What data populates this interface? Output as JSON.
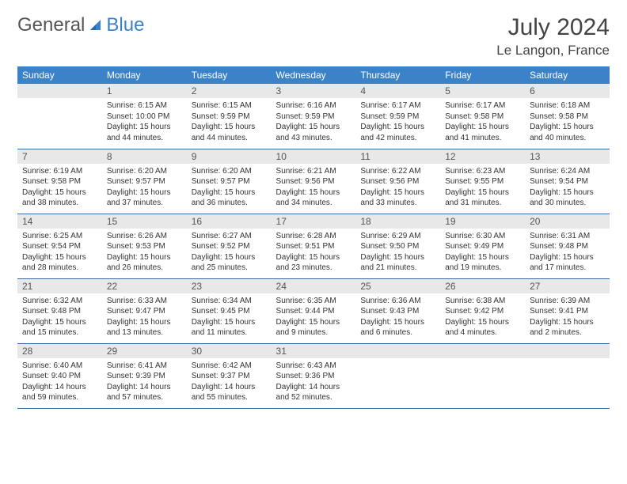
{
  "logo": {
    "text1": "General",
    "text2": "Blue"
  },
  "title": "July 2024",
  "location": "Le Langon, France",
  "weekdays": [
    "Sunday",
    "Monday",
    "Tuesday",
    "Wednesday",
    "Thursday",
    "Friday",
    "Saturday"
  ],
  "colors": {
    "header_bg": "#3b82c8",
    "header_text": "#ffffff",
    "daynum_bg": "#e8e8e8",
    "row_border": "#3b6ea0",
    "body_text": "#333333"
  },
  "fonts": {
    "title_size": 30,
    "location_size": 17,
    "weekday_size": 12,
    "daynum_size": 12,
    "body_size": 10
  },
  "grid": [
    [
      {
        "num": "",
        "lines": []
      },
      {
        "num": "1",
        "lines": [
          "Sunrise: 6:15 AM",
          "Sunset: 10:00 PM",
          "Daylight: 15 hours",
          "and 44 minutes."
        ]
      },
      {
        "num": "2",
        "lines": [
          "Sunrise: 6:15 AM",
          "Sunset: 9:59 PM",
          "Daylight: 15 hours",
          "and 44 minutes."
        ]
      },
      {
        "num": "3",
        "lines": [
          "Sunrise: 6:16 AM",
          "Sunset: 9:59 PM",
          "Daylight: 15 hours",
          "and 43 minutes."
        ]
      },
      {
        "num": "4",
        "lines": [
          "Sunrise: 6:17 AM",
          "Sunset: 9:59 PM",
          "Daylight: 15 hours",
          "and 42 minutes."
        ]
      },
      {
        "num": "5",
        "lines": [
          "Sunrise: 6:17 AM",
          "Sunset: 9:58 PM",
          "Daylight: 15 hours",
          "and 41 minutes."
        ]
      },
      {
        "num": "6",
        "lines": [
          "Sunrise: 6:18 AM",
          "Sunset: 9:58 PM",
          "Daylight: 15 hours",
          "and 40 minutes."
        ]
      }
    ],
    [
      {
        "num": "7",
        "lines": [
          "Sunrise: 6:19 AM",
          "Sunset: 9:58 PM",
          "Daylight: 15 hours",
          "and 38 minutes."
        ]
      },
      {
        "num": "8",
        "lines": [
          "Sunrise: 6:20 AM",
          "Sunset: 9:57 PM",
          "Daylight: 15 hours",
          "and 37 minutes."
        ]
      },
      {
        "num": "9",
        "lines": [
          "Sunrise: 6:20 AM",
          "Sunset: 9:57 PM",
          "Daylight: 15 hours",
          "and 36 minutes."
        ]
      },
      {
        "num": "10",
        "lines": [
          "Sunrise: 6:21 AM",
          "Sunset: 9:56 PM",
          "Daylight: 15 hours",
          "and 34 minutes."
        ]
      },
      {
        "num": "11",
        "lines": [
          "Sunrise: 6:22 AM",
          "Sunset: 9:56 PM",
          "Daylight: 15 hours",
          "and 33 minutes."
        ]
      },
      {
        "num": "12",
        "lines": [
          "Sunrise: 6:23 AM",
          "Sunset: 9:55 PM",
          "Daylight: 15 hours",
          "and 31 minutes."
        ]
      },
      {
        "num": "13",
        "lines": [
          "Sunrise: 6:24 AM",
          "Sunset: 9:54 PM",
          "Daylight: 15 hours",
          "and 30 minutes."
        ]
      }
    ],
    [
      {
        "num": "14",
        "lines": [
          "Sunrise: 6:25 AM",
          "Sunset: 9:54 PM",
          "Daylight: 15 hours",
          "and 28 minutes."
        ]
      },
      {
        "num": "15",
        "lines": [
          "Sunrise: 6:26 AM",
          "Sunset: 9:53 PM",
          "Daylight: 15 hours",
          "and 26 minutes."
        ]
      },
      {
        "num": "16",
        "lines": [
          "Sunrise: 6:27 AM",
          "Sunset: 9:52 PM",
          "Daylight: 15 hours",
          "and 25 minutes."
        ]
      },
      {
        "num": "17",
        "lines": [
          "Sunrise: 6:28 AM",
          "Sunset: 9:51 PM",
          "Daylight: 15 hours",
          "and 23 minutes."
        ]
      },
      {
        "num": "18",
        "lines": [
          "Sunrise: 6:29 AM",
          "Sunset: 9:50 PM",
          "Daylight: 15 hours",
          "and 21 minutes."
        ]
      },
      {
        "num": "19",
        "lines": [
          "Sunrise: 6:30 AM",
          "Sunset: 9:49 PM",
          "Daylight: 15 hours",
          "and 19 minutes."
        ]
      },
      {
        "num": "20",
        "lines": [
          "Sunrise: 6:31 AM",
          "Sunset: 9:48 PM",
          "Daylight: 15 hours",
          "and 17 minutes."
        ]
      }
    ],
    [
      {
        "num": "21",
        "lines": [
          "Sunrise: 6:32 AM",
          "Sunset: 9:48 PM",
          "Daylight: 15 hours",
          "and 15 minutes."
        ]
      },
      {
        "num": "22",
        "lines": [
          "Sunrise: 6:33 AM",
          "Sunset: 9:47 PM",
          "Daylight: 15 hours",
          "and 13 minutes."
        ]
      },
      {
        "num": "23",
        "lines": [
          "Sunrise: 6:34 AM",
          "Sunset: 9:45 PM",
          "Daylight: 15 hours",
          "and 11 minutes."
        ]
      },
      {
        "num": "24",
        "lines": [
          "Sunrise: 6:35 AM",
          "Sunset: 9:44 PM",
          "Daylight: 15 hours",
          "and 9 minutes."
        ]
      },
      {
        "num": "25",
        "lines": [
          "Sunrise: 6:36 AM",
          "Sunset: 9:43 PM",
          "Daylight: 15 hours",
          "and 6 minutes."
        ]
      },
      {
        "num": "26",
        "lines": [
          "Sunrise: 6:38 AM",
          "Sunset: 9:42 PM",
          "Daylight: 15 hours",
          "and 4 minutes."
        ]
      },
      {
        "num": "27",
        "lines": [
          "Sunrise: 6:39 AM",
          "Sunset: 9:41 PM",
          "Daylight: 15 hours",
          "and 2 minutes."
        ]
      }
    ],
    [
      {
        "num": "28",
        "lines": [
          "Sunrise: 6:40 AM",
          "Sunset: 9:40 PM",
          "Daylight: 14 hours",
          "and 59 minutes."
        ]
      },
      {
        "num": "29",
        "lines": [
          "Sunrise: 6:41 AM",
          "Sunset: 9:39 PM",
          "Daylight: 14 hours",
          "and 57 minutes."
        ]
      },
      {
        "num": "30",
        "lines": [
          "Sunrise: 6:42 AM",
          "Sunset: 9:37 PM",
          "Daylight: 14 hours",
          "and 55 minutes."
        ]
      },
      {
        "num": "31",
        "lines": [
          "Sunrise: 6:43 AM",
          "Sunset: 9:36 PM",
          "Daylight: 14 hours",
          "and 52 minutes."
        ]
      },
      {
        "num": "",
        "lines": []
      },
      {
        "num": "",
        "lines": []
      },
      {
        "num": "",
        "lines": []
      }
    ]
  ]
}
